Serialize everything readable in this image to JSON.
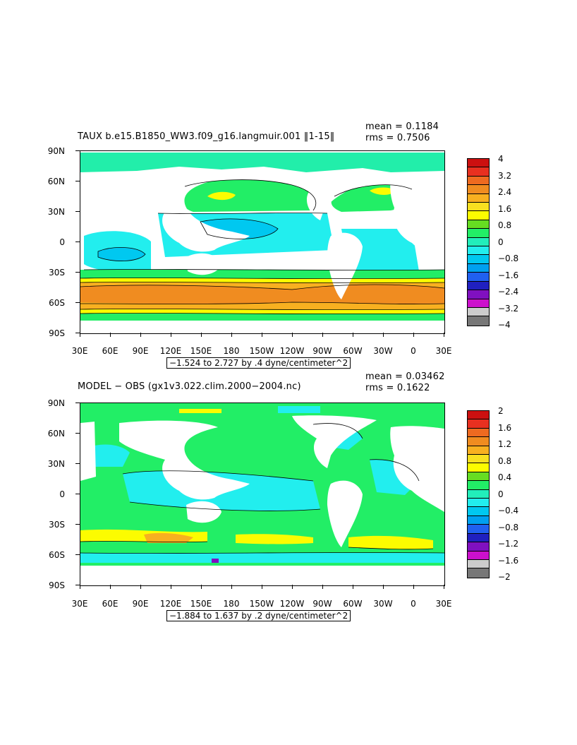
{
  "panels": [
    {
      "title": "TAUX b.e15.B1850_WW3.f09_g16.langmuir.001 ‖1-15‖",
      "mean_label": "mean = 0.1184",
      "rms_label": "rms = 0.7506",
      "range_text": "−1.524 to 2.727 by .4 dyne/centimeter^2",
      "colorbar": {
        "labels": [
          "4",
          "3.2",
          "2.4",
          "1.6",
          "0.8",
          "0",
          "−0.8",
          "−1.6",
          "−2.4",
          "−3.2",
          "−4"
        ],
        "colors": [
          "#cc1010",
          "#e83020",
          "#ee6a20",
          "#f08c20",
          "#f8b020",
          "#f8e020",
          "#fcfc00",
          "#66dd22",
          "#22ee66",
          "#22eebb",
          "#22eeee",
          "#00c8f0",
          "#00a0f0",
          "#2060f0",
          "#2020c0",
          "#8010c0",
          "#cc10cc",
          "#cccccc",
          "#777777"
        ]
      }
    },
    {
      "title": "MODEL − OBS (gx1v3.022.clim.2000−2004.nc)",
      "mean_label": "mean = 0.03462",
      "rms_label": "rms = 0.1622",
      "range_text": "−1.884 to 1.637 by .2 dyne/centimeter^2",
      "colorbar": {
        "labels": [
          "2",
          "1.6",
          "1.2",
          "0.8",
          "0.4",
          "0",
          "−0.4",
          "−0.8",
          "−1.2",
          "−1.6",
          "−2"
        ],
        "colors": [
          "#cc1010",
          "#e83020",
          "#ee6a20",
          "#f08c20",
          "#f8b020",
          "#f8e020",
          "#fcfc00",
          "#66dd22",
          "#22ee66",
          "#22eebb",
          "#22eeee",
          "#00c8f0",
          "#00a0f0",
          "#2060f0",
          "#2020c0",
          "#8010c0",
          "#cc10cc",
          "#cccccc",
          "#777777"
        ]
      }
    }
  ],
  "axes": {
    "lat_labels": [
      "90N",
      "60N",
      "30N",
      "0",
      "30S",
      "60S",
      "90S"
    ],
    "lon_labels": [
      "30E",
      "60E",
      "90E",
      "120E",
      "150E",
      "180",
      "150W",
      "120W",
      "90W",
      "60W",
      "30W",
      "0",
      "30E"
    ]
  }
}
